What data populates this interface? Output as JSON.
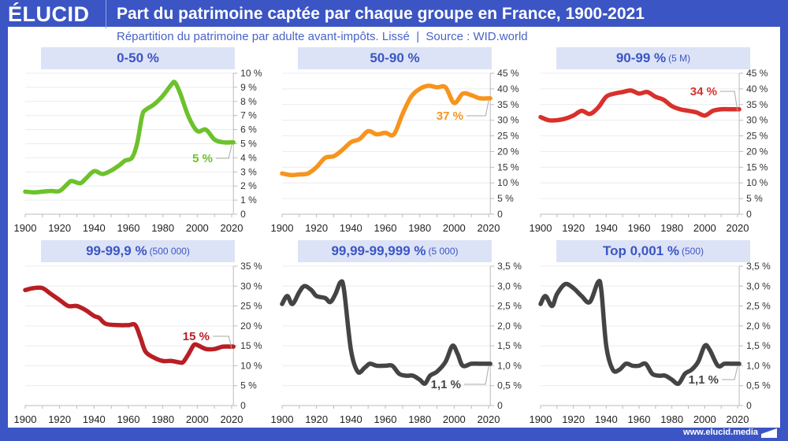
{
  "header": {
    "logo": "ÉLUCID",
    "title": "Part du patrimoine captée par chaque groupe en France, 1900-2021",
    "subtitle": "Répartition du patrimoine par adulte avant-impôts. Lissé  |  Source : WID.world"
  },
  "footer": {
    "link": "www.elucid.media"
  },
  "colors": {
    "frame": "#3b55c4",
    "label_bg": "#dde3f6",
    "grid": "#ececec"
  },
  "chart_data": [
    {
      "type": "line",
      "title": "0-50 %",
      "title_note": "",
      "color": "#6cc22c",
      "ylim": [
        0,
        10
      ],
      "yticks": [
        0,
        1,
        2,
        3,
        4,
        5,
        6,
        7,
        8,
        9,
        10
      ],
      "ytick_labels": [
        "0",
        "1 %",
        "2 %",
        "3 %",
        "4 %",
        "5 %",
        "6 %",
        "7 %",
        "8 %",
        "9 %",
        "10 %"
      ],
      "xticks": [
        1900,
        1920,
        1940,
        1960,
        1980,
        2000,
        2020
      ],
      "annotation": "5 %",
      "grid": true,
      "x": [
        1900,
        1905,
        1910,
        1915,
        1920,
        1925,
        1927,
        1932,
        1935,
        1940,
        1945,
        1950,
        1955,
        1958,
        1962,
        1965,
        1968,
        1970,
        1975,
        1980,
        1985,
        1987,
        1990,
        1995,
        2000,
        2005,
        2010,
        2015,
        2021
      ],
      "y": [
        1.6,
        1.55,
        1.6,
        1.65,
        1.65,
        2.2,
        2.35,
        2.2,
        2.5,
        3.05,
        2.85,
        3.1,
        3.5,
        3.8,
        4.0,
        5.0,
        7.0,
        7.4,
        7.8,
        8.4,
        9.2,
        9.35,
        8.6,
        6.9,
        5.9,
        6.0,
        5.3,
        5.1,
        5.1
      ]
    },
    {
      "type": "line",
      "title": "50-90 %",
      "title_note": "",
      "color": "#f7941d",
      "ylim": [
        0,
        45
      ],
      "yticks": [
        0,
        5,
        10,
        15,
        20,
        25,
        30,
        35,
        40,
        45
      ],
      "ytick_labels": [
        "0",
        "5 %",
        "10 %",
        "15 %",
        "20 %",
        "25 %",
        "30 %",
        "35 %",
        "40 %",
        "45 %"
      ],
      "xticks": [
        1900,
        1920,
        1940,
        1960,
        1980,
        2000,
        2020
      ],
      "annotation": "37 %",
      "grid": true,
      "x": [
        1900,
        1905,
        1910,
        1915,
        1920,
        1925,
        1930,
        1935,
        1940,
        1945,
        1950,
        1955,
        1960,
        1965,
        1970,
        1975,
        1980,
        1985,
        1990,
        1995,
        2000,
        2005,
        2010,
        2015,
        2021
      ],
      "y": [
        13,
        12.5,
        12.7,
        13,
        15,
        18,
        18.5,
        20.5,
        23,
        24,
        26.5,
        25.5,
        26,
        25.5,
        32,
        37.5,
        40,
        41,
        40.5,
        40.5,
        35.5,
        38.5,
        38,
        37,
        37
      ]
    },
    {
      "type": "line",
      "title": "90-99 %",
      "title_note": "(5 M)",
      "color": "#d9302c",
      "ylim": [
        0,
        45
      ],
      "yticks": [
        0,
        5,
        10,
        15,
        20,
        25,
        30,
        35,
        40,
        45
      ],
      "ytick_labels": [
        "0",
        "5 %",
        "10 %",
        "15 %",
        "20 %",
        "25 %",
        "30 %",
        "35 %",
        "40 %",
        "45 %"
      ],
      "xticks": [
        1900,
        1920,
        1940,
        1960,
        1980,
        2000,
        2020
      ],
      "annotation": "34 %",
      "grid": true,
      "x": [
        1900,
        1905,
        1910,
        1915,
        1920,
        1925,
        1930,
        1935,
        1940,
        1945,
        1950,
        1955,
        1960,
        1965,
        1970,
        1975,
        1980,
        1985,
        1990,
        1995,
        2000,
        2005,
        2010,
        2015,
        2021
      ],
      "y": [
        31,
        30,
        30,
        30.5,
        31.5,
        33,
        32,
        34,
        37.5,
        38.5,
        39,
        39.5,
        38.5,
        39,
        37.5,
        36.5,
        34.5,
        33.5,
        33,
        32.5,
        31.5,
        33,
        33.5,
        33.5,
        33.5
      ]
    },
    {
      "type": "line",
      "title": "99-99,9 %",
      "title_note": "(500 000)",
      "color": "#b81f24",
      "ylim": [
        0,
        35
      ],
      "yticks": [
        0,
        5,
        10,
        15,
        20,
        25,
        30,
        35
      ],
      "ytick_labels": [
        "0",
        "5 %",
        "10 %",
        "15 %",
        "20 %",
        "25 %",
        "30 %",
        "35 %"
      ],
      "xticks": [
        1900,
        1920,
        1940,
        1960,
        1980,
        2000,
        2020
      ],
      "annotation": "15 %",
      "grid": true,
      "x": [
        1900,
        1905,
        1910,
        1915,
        1920,
        1925,
        1930,
        1935,
        1940,
        1943,
        1947,
        1955,
        1960,
        1964,
        1967,
        1970,
        1975,
        1980,
        1985,
        1990,
        1992,
        1995,
        1998,
        2000,
        2005,
        2010,
        2015,
        2021
      ],
      "y": [
        29,
        29.5,
        29.5,
        28,
        26.5,
        25,
        25,
        24,
        22.5,
        22,
        20.5,
        20.2,
        20.2,
        20.2,
        17,
        13.5,
        12,
        11.2,
        11.2,
        10.8,
        11,
        13,
        15.2,
        15.2,
        14.2,
        14.2,
        14.8,
        14.8
      ]
    },
    {
      "type": "line",
      "title": "99,99-99,999 %",
      "title_note": "(5 000)",
      "color": "#444444",
      "ylim": [
        0,
        3.5
      ],
      "yticks": [
        0,
        0.5,
        1,
        1.5,
        2,
        2.5,
        3,
        3.5
      ],
      "ytick_labels": [
        "0",
        "0,5 %",
        "1,0 %",
        "1,5 %",
        "2,0 %",
        "2,5 %",
        "3,0 %",
        "3,5 %"
      ],
      "xticks": [
        1900,
        1920,
        1940,
        1960,
        1980,
        2000,
        2020
      ],
      "annotation": "1,1 %",
      "grid": true,
      "x": [
        1900,
        1903,
        1906,
        1910,
        1913,
        1917,
        1920,
        1925,
        1928,
        1931,
        1934,
        1936,
        1940,
        1944,
        1948,
        1951,
        1955,
        1960,
        1964,
        1968,
        1972,
        1976,
        1980,
        1983,
        1986,
        1990,
        1995,
        1999,
        2002,
        2005,
        2010,
        2015,
        2021
      ],
      "y": [
        2.55,
        2.75,
        2.55,
        2.85,
        3.0,
        2.9,
        2.75,
        2.7,
        2.6,
        2.8,
        3.1,
        2.9,
        1.4,
        0.85,
        0.95,
        1.05,
        1.0,
        1.0,
        1.0,
        0.8,
        0.75,
        0.75,
        0.65,
        0.55,
        0.75,
        0.85,
        1.1,
        1.5,
        1.3,
        1.0,
        1.05,
        1.05,
        1.05
      ]
    },
    {
      "type": "line",
      "title": "Top 0,001 %",
      "title_note": "(500)",
      "color": "#444444",
      "ylim": [
        0,
        3.5
      ],
      "yticks": [
        0,
        0.5,
        1,
        1.5,
        2,
        2.5,
        3,
        3.5
      ],
      "ytick_labels": [
        "0",
        "0,5 %",
        "1,0 %",
        "1,5 %",
        "2,0 %",
        "2,5 %",
        "3,0 %",
        "3,5 %"
      ],
      "xticks": [
        1900,
        1920,
        1940,
        1960,
        1980,
        2000,
        2020
      ],
      "annotation": "1,1 %",
      "grid": true,
      "x": [
        1900,
        1903,
        1907,
        1910,
        1915,
        1920,
        1925,
        1930,
        1935,
        1937,
        1940,
        1944,
        1948,
        1952,
        1956,
        1960,
        1964,
        1968,
        1972,
        1976,
        1980,
        1984,
        1988,
        1992,
        1996,
        2000,
        2003,
        2008,
        2012,
        2016,
        2021
      ],
      "y": [
        2.55,
        2.75,
        2.5,
        2.8,
        3.05,
        2.95,
        2.75,
        2.6,
        3.1,
        2.9,
        1.5,
        0.9,
        0.9,
        1.05,
        1.0,
        1.0,
        1.05,
        0.8,
        0.75,
        0.75,
        0.65,
        0.55,
        0.8,
        0.9,
        1.1,
        1.5,
        1.4,
        1.0,
        1.05,
        1.05,
        1.05
      ]
    }
  ]
}
